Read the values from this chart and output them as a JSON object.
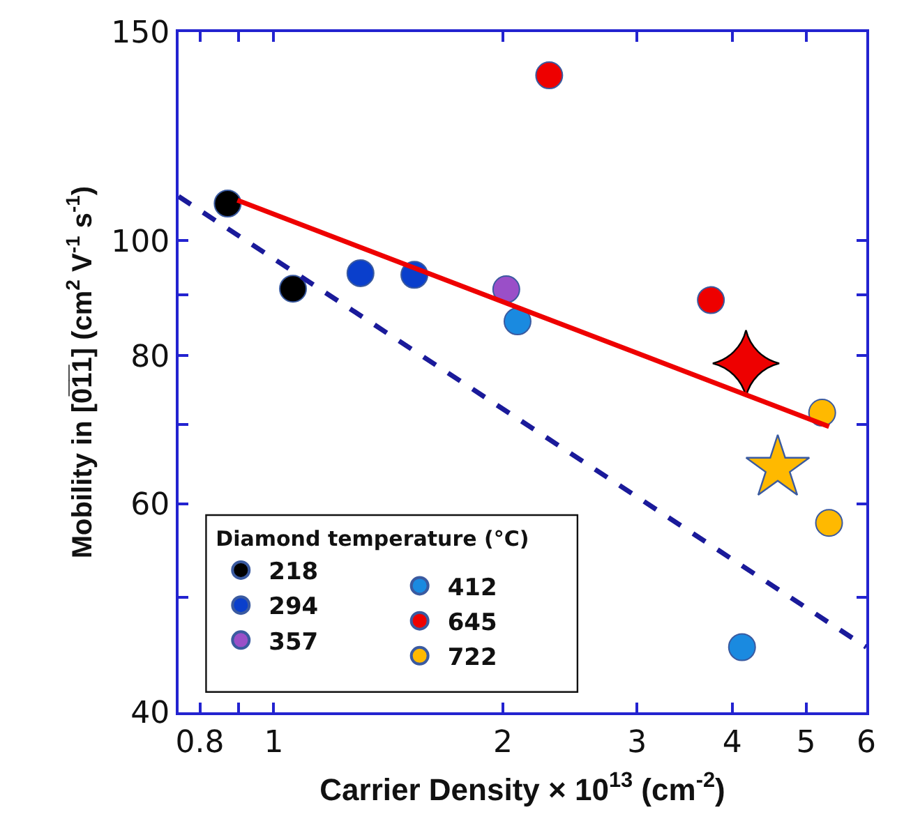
{
  "chart_data": {
    "type": "scatter",
    "xlabel": "Carrier Density × 10$^{13}$ (cm$^{-2}$)",
    "ylabel": "Mobility in [0̅1̅1] (cm$^{2}$ V$^{-1}$ s$^{-1}$)",
    "legend_title": "Diamond temperature (°C)",
    "log": "xy",
    "legend": "bottom left",
    "grid": false,
    "marker": "circle",
    "xlim": [
      0.75,
      6
    ],
    "ylim": [
      40,
      150
    ],
    "xticks": [
      0.8,
      {
        "value": 0.9,
        "label": null
      },
      1,
      2,
      3,
      4,
      5,
      6
    ],
    "yticks": [
      40,
      {
        "value": 50,
        "label": null
      },
      60,
      {
        "value": 70,
        "label": null
      },
      80,
      {
        "value": 90,
        "label": null
      },
      100,
      150
    ],
    "series": [
      {
        "name": "218",
        "color": "#000000",
        "x": [
          0.87,
          1.06
        ],
        "values": [
          107.5,
          91.1
        ]
      },
      {
        "name": "294",
        "color": "#0a3fcc",
        "x": [
          1.3,
          1.53
        ],
        "values": [
          93.9,
          93.6
        ]
      },
      {
        "name": "357",
        "color": "#9a4fc8",
        "x": [
          2.02
        ],
        "values": [
          91.0
        ]
      },
      {
        "name": "412",
        "color": "#1a8ae0",
        "x": [
          2.09,
          4.12
        ],
        "values": [
          85.5,
          45.4
        ]
      },
      {
        "name": "645",
        "color": "#ee0000",
        "x": [
          2.3,
          3.75
        ],
        "values": [
          137.9,
          89.1
        ]
      },
      {
        "name": "722",
        "color": "#ffb900",
        "x": [
          5.25,
          5.36
        ],
        "values": [
          71.6,
          57.8
        ]
      },
      {
        "color": "#ee0000",
        "marker": "star4",
        "x": [
          4.17
        ],
        "values": [
          78.8
        ]
      },
      {
        "color": "#ffb900",
        "marker": "star",
        "x": [
          4.59
        ],
        "values": [
          64.3
        ]
      },
      {
        "type": "line",
        "color": "#ee0000",
        "line_style": "solid",
        "marker": "none",
        "x": [
          0.896,
          5.36
        ],
        "values": [
          108.2,
          69.7
        ]
      },
      {
        "type": "line",
        "color": "#1a1a9a",
        "line_style": "dashed",
        "marker": "none",
        "x": [
          0.75,
          6
        ],
        "values": [
          109.0,
          45.4
        ]
      }
    ]
  }
}
